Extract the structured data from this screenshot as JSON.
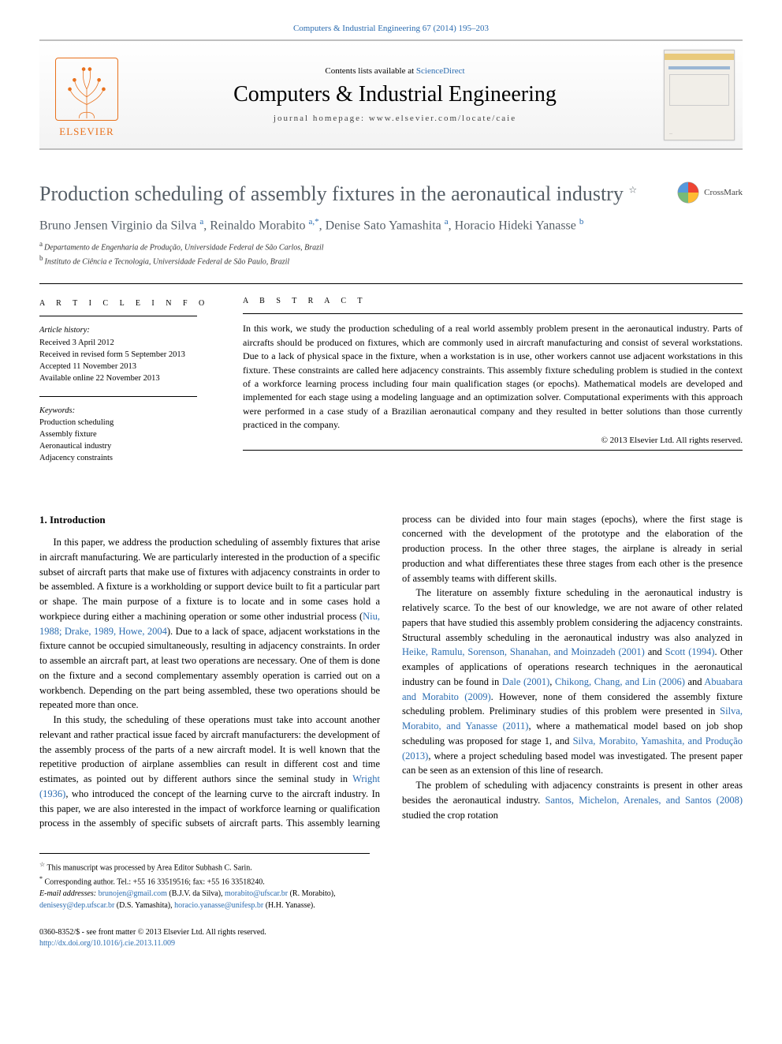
{
  "banner": {
    "citation": "Computers & Industrial Engineering 67 (2014) 195–203",
    "contents_prefix": "Contents lists available at ",
    "contents_link": "ScienceDirect",
    "journal_title": "Computers & Industrial Engineering",
    "homepage_prefix": "journal homepage: ",
    "homepage_url": "www.elsevier.com/locate/caie",
    "publisher_logo_text": "ELSEVIER",
    "colors": {
      "elsevier_orange": "#e9711c",
      "link_blue": "#2b6cb0",
      "title_gray": "#555e66",
      "rule_gray": "#bfbfbf",
      "bg_gradient_end": "#f3f3f3"
    }
  },
  "crossmark": {
    "label": "CrossMark"
  },
  "article": {
    "title": "Production scheduling of assembly fixtures in the aeronautical industry",
    "title_footnote_mark": "☆",
    "authors_html": [
      {
        "name": "Bruno Jensen Virginio da Silva",
        "aff": "a"
      },
      {
        "name": "Reinaldo Morabito",
        "aff": "a,*"
      },
      {
        "name": "Denise Sato Yamashita",
        "aff": "a"
      },
      {
        "name": "Horacio Hideki Yanasse",
        "aff": "b"
      }
    ],
    "affiliations": [
      {
        "tag": "a",
        "text": "Departamento de Engenharia de Produção, Universidade Federal de São Carlos, Brazil"
      },
      {
        "tag": "b",
        "text": "Instituto de Ciência e Tecnologia, Universidade Federal de São Paulo, Brazil"
      }
    ]
  },
  "meta": {
    "label_info": "a r t i c l e   i n f o",
    "label_abstract": "a b s t r a c t",
    "history_heading": "Article history:",
    "history_lines": [
      "Received 3 April 2012",
      "Received in revised form 5 September 2013",
      "Accepted 11 November 2013",
      "Available online 22 November 2013"
    ],
    "keywords_heading": "Keywords:",
    "keywords": [
      "Production scheduling",
      "Assembly fixture",
      "Aeronautical industry",
      "Adjacency constraints"
    ],
    "abstract": "In this work, we study the production scheduling of a real world assembly problem present in the aeronautical industry. Parts of aircrafts should be produced on fixtures, which are commonly used in aircraft manufacturing and consist of several workstations. Due to a lack of physical space in the fixture, when a workstation is in use, other workers cannot use adjacent workstations in this fixture. These constraints are called here adjacency constraints. This assembly fixture scheduling problem is studied in the context of a workforce learning process including four main qualification stages (or epochs). Mathematical models are developed and implemented for each stage using a modeling language and an optimization solver. Computational experiments with this approach were performed in a case study of a Brazilian aeronautical company and they resulted in better solutions than those currently practiced in the company.",
    "copyright": "© 2013 Elsevier Ltd. All rights reserved."
  },
  "body": {
    "section_heading": "1. Introduction",
    "paragraphs": [
      "In this paper, we address the production scheduling of assembly fixtures that arise in aircraft manufacturing. We are particularly interested in the production of a specific subset of aircraft parts that make use of fixtures with adjacency constraints in order to be assembled. A fixture is a workholding or support device built to fit a particular part or shape. The main purpose of a fixture is to locate and in some cases hold a workpiece during either a machining operation or some other industrial process (<span class='link'>Niu, 1988; Drake, 1989, Howe, 2004</span>). Due to a lack of space, adjacent workstations in the fixture cannot be occupied simultaneously, resulting in adjacency constraints. In order to assemble an aircraft part, at least two operations are necessary. One of them is done on the fixture and a second complementary assembly operation is carried out on a workbench. Depending on the part being assembled, these two operations should be repeated more than once.",
      "In this study, the scheduling of these operations must take into account another relevant and rather practical issue faced by aircraft manufacturers: the development of the assembly process of the parts of a new aircraft model. It is well known that the repetitive production of airplane assemblies can result in different cost and time estimates, as pointed out by different authors since the seminal study in <span class='link'>Wright (1936)</span>, who introduced the concept of the learning curve to the aircraft industry. In this paper, we are also interested in the impact of workforce learning or qualification process in the assembly of specific subsets of aircraft parts. This assembly learning process can be divided into four main stages (epochs), where the first stage is concerned with the development of the prototype and the elaboration of the production process. In the other three stages, the airplane is already in serial production and what differentiates these three stages from each other is the presence of assembly teams with different skills.",
      "The literature on assembly fixture scheduling in the aeronautical industry is relatively scarce. To the best of our knowledge, we are not aware of other related papers that have studied this assembly problem considering the adjacency constraints. Structural assembly scheduling in the aeronautical industry was also analyzed in <span class='link'>Heike, Ramulu, Sorenson, Shanahan, and Moinzadeh (2001)</span> and <span class='link'>Scott (1994)</span>. Other examples of applications of operations research techniques in the aeronautical industry can be found in <span class='link'>Dale (2001)</span>, <span class='link'>Chikong, Chang, and Lin (2006)</span> and <span class='link'>Abuabara and Morabito (2009)</span>. However, none of them considered the assembly fixture scheduling problem. Preliminary studies of this problem were presented in <span class='link'>Silva, Morabito, and Yanasse (2011)</span>, where a mathematical model based on job shop scheduling was proposed for stage 1, and <span class='link'>Silva, Morabito, Yamashita, and Produção (2013)</span>, where a project scheduling based model was investigated. The present paper can be seen as an extension of this line of research.",
      "The problem of scheduling with adjacency constraints is present in other areas besides the aeronautical industry. <span class='link'>Santos, Michelon, Arenales, and Santos (2008)</span> studied the crop rotation"
    ]
  },
  "footnotes": {
    "note1_mark": "☆",
    "note1_text": "This manuscript was processed by Area Editor Subhash C. Sarin.",
    "note2_mark": "*",
    "note2_text": "Corresponding author. Tel.: +55 16 33519516; fax: +55 16 33518240.",
    "emails_label": "E-mail addresses: ",
    "emails": [
      {
        "email": "brunojen@gmail.com",
        "who": "(B.J.V. da Silva)"
      },
      {
        "email": "morabito@ufscar.br",
        "who": "(R. Morabito)"
      },
      {
        "email": "denisesy@dep.ufscar.br",
        "who": "(D.S. Yamashita)"
      },
      {
        "email": "horacio.yanasse@unifesp.br",
        "who": "(H.H. Yanasse)"
      }
    ]
  },
  "footer": {
    "line1": "0360-8352/$ - see front matter © 2013 Elsevier Ltd. All rights reserved.",
    "doi": "http://dx.doi.org/10.1016/j.cie.2013.11.009"
  }
}
